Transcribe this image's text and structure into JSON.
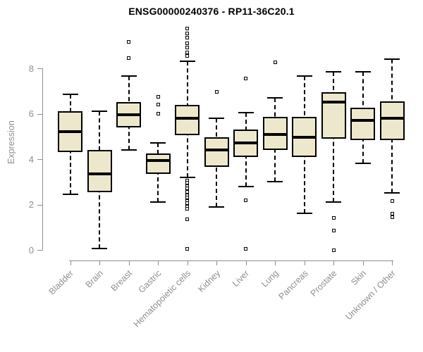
{
  "chart_data": {
    "type": "boxplot",
    "title": "ENSG00000240376 - RP11-36C20.1",
    "ylabel": "Expression",
    "xlabel": "",
    "yticks": [
      0,
      2,
      4,
      6,
      8
    ],
    "ylim": [
      0,
      9.9
    ],
    "grid": false,
    "legend": null,
    "categories": [
      "Bladder",
      "Brain",
      "Breast",
      "Gastric",
      "Hematopoietic cells",
      "Kidney",
      "Liver",
      "Lung",
      "Pancreas",
      "Prostate",
      "Skin",
      "Unknown / Other"
    ],
    "boxes": [
      {
        "category": "Bladder",
        "whisker_low": 2.45,
        "q1": 4.3,
        "median": 5.2,
        "q3": 6.1,
        "whisker_high": 6.85,
        "outliers": []
      },
      {
        "category": "Brain",
        "whisker_low": 0.05,
        "q1": 2.55,
        "median": 3.35,
        "q3": 4.4,
        "whisker_high": 6.1,
        "outliers": []
      },
      {
        "category": "Breast",
        "whisker_low": 4.4,
        "q1": 5.4,
        "median": 5.95,
        "q3": 6.5,
        "whisker_high": 7.65,
        "outliers": [
          9.15,
          8.45
        ]
      },
      {
        "category": "Gastric",
        "whisker_low": 2.1,
        "q1": 3.35,
        "median": 3.95,
        "q3": 4.25,
        "whisker_high": 4.7,
        "outliers": [
          6.75,
          6.4,
          6.0
        ]
      },
      {
        "category": "Hematopoietic cells",
        "whisker_low": 3.2,
        "q1": 5.05,
        "median": 5.8,
        "q3": 6.4,
        "whisker_high": 8.3,
        "outliers": [
          9.75,
          9.55,
          9.35,
          9.1,
          8.9,
          8.7,
          8.55,
          3.05,
          2.95,
          2.8,
          2.7,
          2.55,
          2.4,
          2.3,
          2.15,
          2.05,
          1.9,
          1.8,
          1.35,
          0.05
        ]
      },
      {
        "category": "Kidney",
        "whisker_low": 1.9,
        "q1": 3.65,
        "median": 4.4,
        "q3": 4.95,
        "whisker_high": 5.8,
        "outliers": [
          6.95
        ]
      },
      {
        "category": "Liver",
        "whisker_low": 2.8,
        "q1": 4.1,
        "median": 4.7,
        "q3": 5.3,
        "whisker_high": 6.05,
        "outliers": [
          7.55,
          2.2,
          0.05
        ]
      },
      {
        "category": "Lung",
        "whisker_low": 3.0,
        "q1": 4.4,
        "median": 5.1,
        "q3": 5.85,
        "whisker_high": 6.7,
        "outliers": [
          8.25
        ]
      },
      {
        "category": "Pancreas",
        "whisker_low": 1.6,
        "q1": 4.1,
        "median": 4.95,
        "q3": 5.85,
        "whisker_high": 7.65,
        "outliers": []
      },
      {
        "category": "Prostate",
        "whisker_low": 2.1,
        "q1": 4.9,
        "median": 6.5,
        "q3": 6.95,
        "whisker_high": 7.85,
        "outliers": [
          1.4,
          0.85,
          0.0
        ]
      },
      {
        "category": "Skin",
        "whisker_low": 3.8,
        "q1": 4.85,
        "median": 5.7,
        "q3": 6.25,
        "whisker_high": 7.85,
        "outliers": []
      },
      {
        "category": "Unknown / Other",
        "whisker_low": 2.5,
        "q1": 4.85,
        "median": 5.8,
        "q3": 6.55,
        "whisker_high": 8.4,
        "outliers": [
          2.15,
          1.6,
          1.45
        ]
      }
    ],
    "colors": {
      "box_fill": "#EDE8CC",
      "box_border": "#000000",
      "median": "#000000",
      "whisker": "#000000",
      "axis": "#8f8f8f",
      "tick_text": "#8f8f8f",
      "title_text": "#000000",
      "background": "#ffffff"
    }
  }
}
